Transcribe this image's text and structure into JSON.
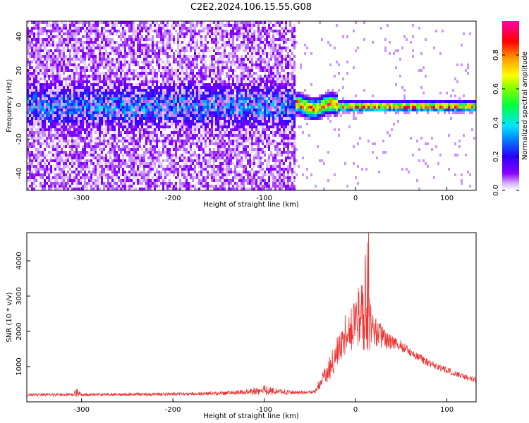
{
  "title": "C2E2.2024.106.15.55.G08",
  "chart_data": [
    {
      "type": "heatmap",
      "id": "spectrogram",
      "xlabel": "Height of straight line (km)",
      "ylabel": "Frequency (Hz)",
      "xlim": [
        -360,
        132
      ],
      "ylim": [
        -50,
        49
      ],
      "xticks": [
        -300,
        -200,
        -100,
        0,
        100
      ],
      "xtick_labels": [
        "-300",
        "-200",
        "-100",
        "0",
        "100"
      ],
      "yticks": [
        -40,
        -20,
        0,
        20,
        40
      ],
      "ytick_labels": [
        "-40",
        "-20",
        "0",
        "20",
        "40"
      ],
      "description_regions": [
        {
          "x_range": [
            -360,
            -68
          ],
          "pattern": "noisy broadband, strongest near 0 Hz (±12 Hz)",
          "amplitude": [
            0.05,
            0.35
          ]
        },
        {
          "x_range": [
            -68,
            132
          ],
          "pattern": "narrow line near 0 Hz",
          "amplitude": [
            0.6,
            1.0
          ]
        }
      ],
      "colorbar": {
        "label": "Normalized spectral amplitude",
        "range": [
          0,
          1
        ],
        "ticks": [
          0.0,
          0.2,
          0.4,
          0.6,
          0.8
        ],
        "tick_labels": [
          "0.0",
          "0.2",
          "0.4",
          "0.6",
          "0.8"
        ],
        "colormap": "gist_rainbow (white at 0 → purple → blue → cyan → green → yellow → red → magenta)"
      }
    },
    {
      "type": "line",
      "id": "snr",
      "xlabel": "Height of straight line (km)",
      "ylabel": "SNR (10 * v/v)",
      "xlim": [
        -360,
        132
      ],
      "ylim": [
        0,
        4800
      ],
      "xticks": [
        -300,
        -200,
        -100,
        0,
        100
      ],
      "xtick_labels": [
        "-300",
        "-200",
        "-100",
        "0",
        "100"
      ],
      "yticks": [
        1000,
        2000,
        3000,
        4000
      ],
      "ytick_labels": [
        "1000",
        "2000",
        "3000",
        "4000"
      ],
      "series": [
        {
          "name": "SNR",
          "color": "#ee3333",
          "envelope_x": [
            -360,
            -310,
            -305,
            -300,
            -250,
            -200,
            -150,
            -120,
            -100,
            -80,
            -60,
            -45,
            -40,
            -30,
            -20,
            -10,
            0,
            5,
            10,
            15,
            20,
            30,
            40,
            50,
            60,
            80,
            100,
            120,
            132
          ],
          "envelope_mean": [
            200,
            200,
            260,
            200,
            210,
            220,
            240,
            280,
            330,
            280,
            260,
            280,
            500,
            900,
            1400,
            2000,
            2300,
            2500,
            2400,
            2200,
            2000,
            1800,
            1700,
            1600,
            1400,
            1100,
            900,
            700,
            620
          ],
          "envelope_spread": [
            80,
            80,
            250,
            80,
            80,
            90,
            100,
            150,
            300,
            150,
            100,
            100,
            300,
            700,
            900,
            1200,
            1600,
            1800,
            2000,
            1500,
            1000,
            600,
            400,
            300,
            250,
            200,
            180,
            150,
            150
          ]
        }
      ]
    }
  ]
}
